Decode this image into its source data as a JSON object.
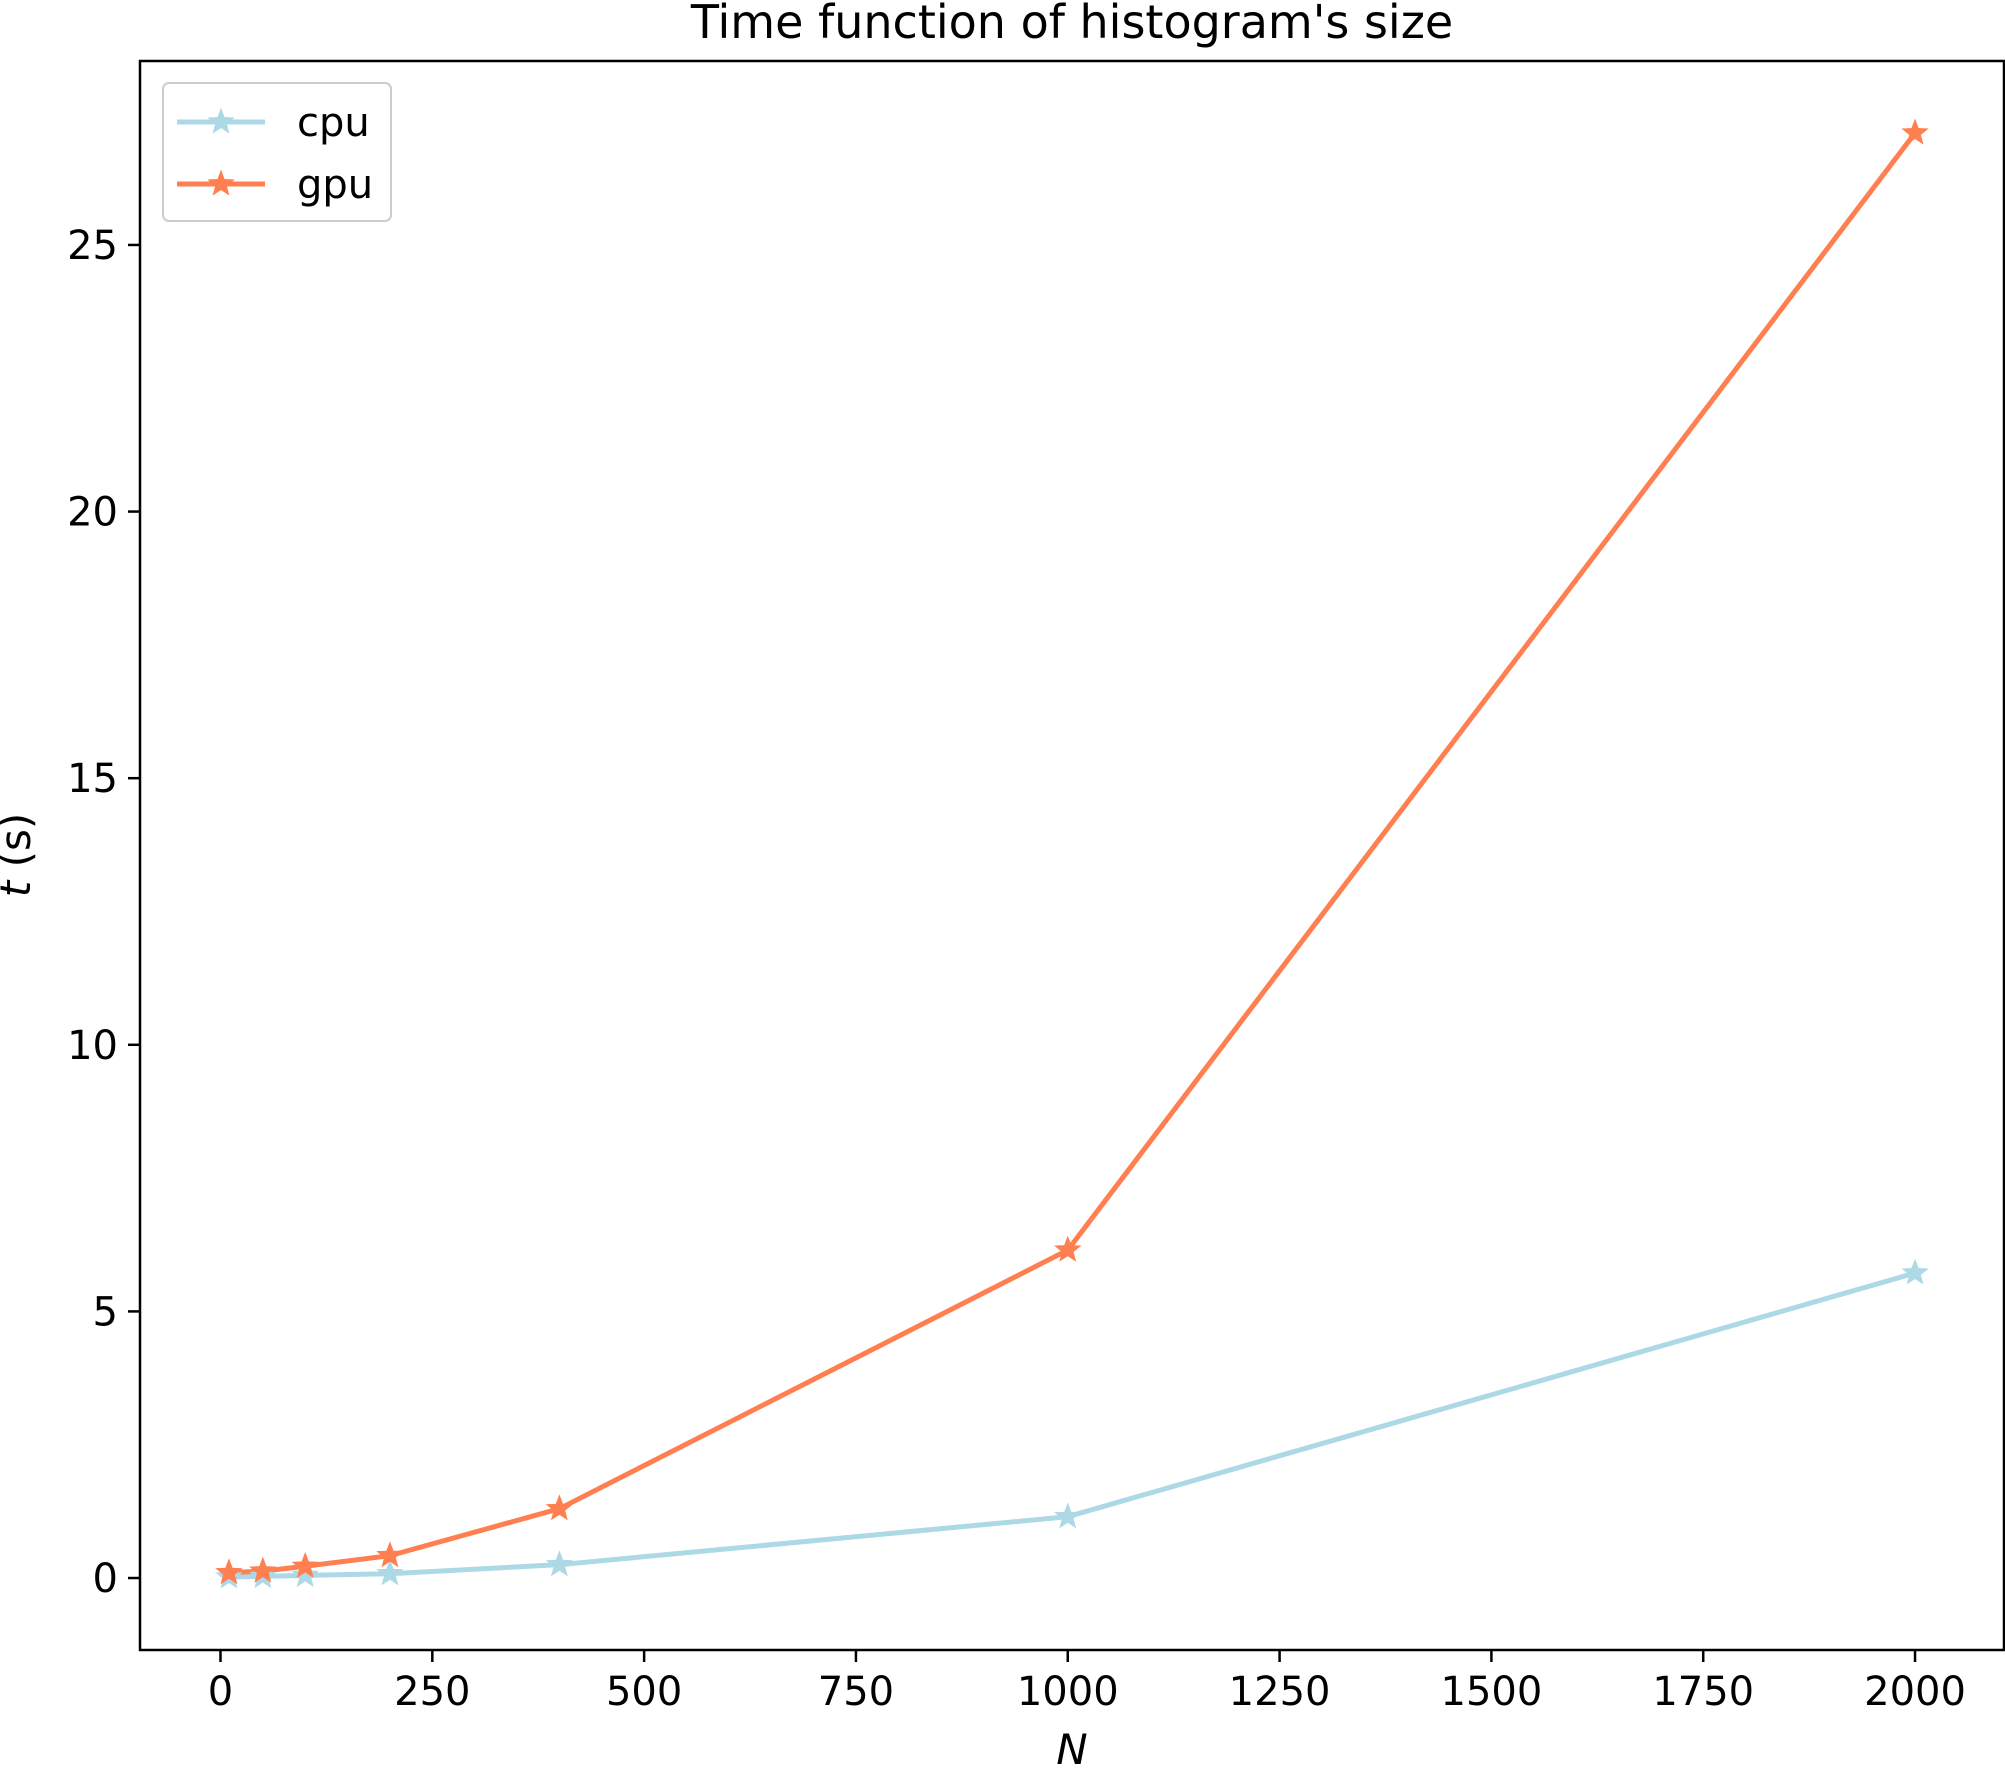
{
  "chart_data": {
    "type": "line",
    "title": "Time function of histogram's size",
    "xlabel": "N",
    "ylabel": "t (s)",
    "xlim": [
      -95,
      2105
    ],
    "ylim": [
      -1.35,
      28.45
    ],
    "xticks": [
      0,
      250,
      500,
      750,
      1000,
      1250,
      1500,
      1750,
      2000
    ],
    "yticks": [
      0,
      5,
      10,
      15,
      20,
      25
    ],
    "grid": false,
    "legend_position": "upper left",
    "series": [
      {
        "name": "cpu",
        "color": "#add8e6",
        "marker": "star",
        "x": [
          10,
          50,
          100,
          200,
          400,
          1000,
          2000
        ],
        "y": [
          0.02,
          0.03,
          0.05,
          0.08,
          0.25,
          1.15,
          5.72
        ]
      },
      {
        "name": "gpu",
        "color": "#ff7f50",
        "marker": "star",
        "x": [
          10,
          50,
          100,
          200,
          400,
          1000,
          2000
        ],
        "y": [
          0.1,
          0.13,
          0.22,
          0.42,
          1.3,
          6.15,
          27.1
        ]
      }
    ]
  }
}
